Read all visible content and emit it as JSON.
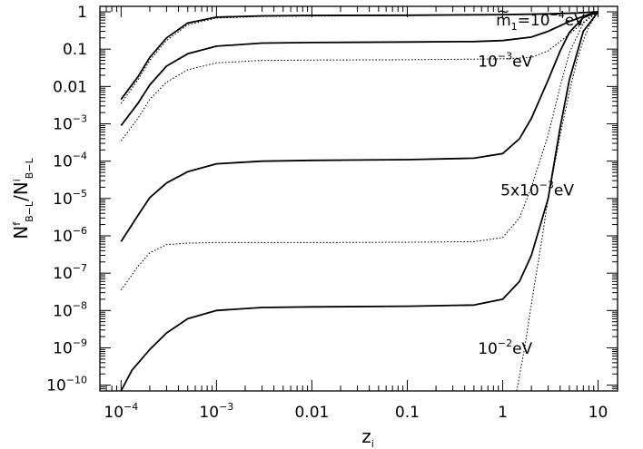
{
  "chart_data": {
    "type": "line",
    "xscale": "log",
    "yscale": "log",
    "xlim": [
      6e-05,
      16
    ],
    "ylim": [
      7e-11,
      1.4
    ],
    "xlabel_base": "z",
    "xlabel_sub": "i",
    "ylabel_num": "N",
    "ylabel_num_sup": "f",
    "ylabel_num_sub": "B−L",
    "ylabel_slash": "/",
    "ylabel_den": "N",
    "ylabel_den_sup": "i",
    "ylabel_den_sub": "B−L",
    "x_ticks": [
      {
        "value": 0.0001,
        "base": "10",
        "exp": "−4"
      },
      {
        "value": 0.001,
        "base": "10",
        "exp": "−3"
      },
      {
        "value": 0.01,
        "base": "0.01",
        "exp": ""
      },
      {
        "value": 0.1,
        "base": "0.1",
        "exp": ""
      },
      {
        "value": 1,
        "base": "1",
        "exp": ""
      },
      {
        "value": 10,
        "base": "10",
        "exp": ""
      }
    ],
    "y_ticks": [
      {
        "value": 1,
        "base": "1",
        "exp": ""
      },
      {
        "value": 0.1,
        "base": "0.1",
        "exp": ""
      },
      {
        "value": 0.01,
        "base": "0.01",
        "exp": ""
      },
      {
        "value": 0.001,
        "base": "10",
        "exp": "−3"
      },
      {
        "value": 0.0001,
        "base": "10",
        "exp": "−4"
      },
      {
        "value": 1e-05,
        "base": "10",
        "exp": "−5"
      },
      {
        "value": 1e-06,
        "base": "10",
        "exp": "−6"
      },
      {
        "value": 1e-07,
        "base": "10",
        "exp": "−7"
      },
      {
        "value": 1e-08,
        "base": "10",
        "exp": "−8"
      },
      {
        "value": 1e-09,
        "base": "10",
        "exp": "−9"
      },
      {
        "value": 1e-10,
        "base": "10",
        "exp": "−10"
      }
    ],
    "series": [
      {
        "style": "solid",
        "x": [
          0.0001,
          0.00015,
          0.0002,
          0.0003,
          0.0005,
          0.001,
          0.003,
          0.01,
          0.1,
          1,
          3,
          6,
          10
        ],
        "y": [
          0.0045,
          0.018,
          0.06,
          0.2,
          0.5,
          0.72,
          0.78,
          0.8,
          0.81,
          0.84,
          0.88,
          0.93,
          1.0
        ]
      },
      {
        "style": "dotted",
        "x": [
          0.0001,
          0.00015,
          0.0002,
          0.0003,
          0.0005,
          0.001,
          0.003,
          0.01,
          0.1,
          1,
          3,
          6,
          10
        ],
        "y": [
          0.0035,
          0.015,
          0.05,
          0.17,
          0.45,
          0.68,
          0.75,
          0.77,
          0.79,
          0.82,
          0.86,
          0.92,
          1.0
        ]
      },
      {
        "style": "solid",
        "x": [
          0.0001,
          0.00015,
          0.0002,
          0.0003,
          0.0005,
          0.001,
          0.003,
          0.01,
          0.1,
          0.5,
          1,
          2,
          3,
          5,
          8,
          10
        ],
        "y": [
          0.0009,
          0.0035,
          0.011,
          0.035,
          0.075,
          0.12,
          0.145,
          0.15,
          0.155,
          0.16,
          0.17,
          0.21,
          0.3,
          0.55,
          0.85,
          1.0
        ]
      },
      {
        "style": "dotted",
        "x": [
          0.0001,
          0.00015,
          0.0002,
          0.0003,
          0.0005,
          0.001,
          0.003,
          0.01,
          0.1,
          1,
          2,
          3,
          5,
          8,
          10
        ],
        "y": [
          0.00035,
          0.0014,
          0.0045,
          0.013,
          0.028,
          0.043,
          0.05,
          0.051,
          0.052,
          0.055,
          0.06,
          0.09,
          0.25,
          0.7,
          1.0
        ]
      },
      {
        "style": "solid",
        "x": [
          0.0001,
          0.00015,
          0.0002,
          0.0003,
          0.0005,
          0.001,
          0.003,
          0.01,
          0.1,
          0.5,
          1,
          1.5,
          2,
          3,
          4,
          5,
          7,
          10
        ],
        "y": [
          7e-07,
          3.5e-06,
          1.05e-05,
          2.6e-05,
          5.2e-05,
          8.5e-05,
          0.0001,
          0.000105,
          0.00011,
          0.00012,
          0.00016,
          0.0004,
          0.0014,
          0.015,
          0.09,
          0.28,
          0.7,
          1.0
        ]
      },
      {
        "style": "dotted",
        "x": [
          0.0001,
          0.00015,
          0.0002,
          0.0003,
          0.0005,
          0.001,
          0.003,
          0.01,
          0.1,
          0.5,
          1,
          1.5,
          2,
          3,
          4,
          5,
          7,
          10
        ],
        "y": [
          3.5e-08,
          1.5e-07,
          3.5e-07,
          5.8e-07,
          6.4e-07,
          6.6e-07,
          6.6e-07,
          6.6e-07,
          6.7e-07,
          7e-07,
          9e-07,
          3e-06,
          2e-05,
          0.0005,
          0.01,
          0.08,
          0.5,
          1.0
        ]
      },
      {
        "style": "solid",
        "x": [
          0.0001,
          0.00013,
          0.0002,
          0.0003,
          0.0005,
          0.001,
          0.003,
          0.01,
          0.1,
          0.5,
          1,
          1.5,
          2,
          3,
          4,
          5,
          7,
          10
        ],
        "y": [
          7e-11,
          2.5e-10,
          9e-10,
          2.5e-09,
          6e-09,
          1e-08,
          1.2e-08,
          1.25e-08,
          1.3e-08,
          1.4e-08,
          2e-08,
          6e-08,
          3e-07,
          1e-05,
          0.0008,
          0.015,
          0.3,
          1.0
        ]
      },
      {
        "style": "dotted",
        "x": [
          1.4,
          1.7,
          2,
          2.5,
          3,
          4,
          5,
          6,
          7,
          8,
          10
        ],
        "y": [
          7e-11,
          1e-09,
          1.5e-08,
          5e-07,
          1e-05,
          0.0005,
          0.007,
          0.05,
          0.17,
          0.4,
          1.0
        ]
      }
    ],
    "annotations": [
      {
        "text": "m",
        "tilde": true,
        "sub": "1",
        "rest": "=10",
        "exp": "−4",
        "unit": "eV",
        "x": 0.85,
        "y": 0.43
      },
      {
        "text": "10",
        "exp": "−3",
        "unit": "eV",
        "x": 0.55,
        "y": 0.034
      },
      {
        "text": "5x10",
        "exp": "−3",
        "unit": "eV",
        "x": 0.95,
        "y": 1.2e-05
      },
      {
        "text": "10",
        "exp": "−2",
        "unit": "eV",
        "x": 0.55,
        "y": 7e-10
      }
    ]
  }
}
